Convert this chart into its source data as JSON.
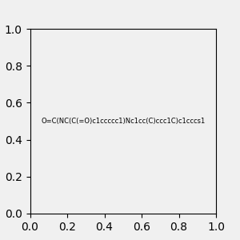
{
  "smiles": "O=C(NC(C(=O)c1ccccc1)Nc1cc(C)ccc1C)c1cccs1",
  "image_size": 300,
  "background_color": "#f0f0f0"
}
